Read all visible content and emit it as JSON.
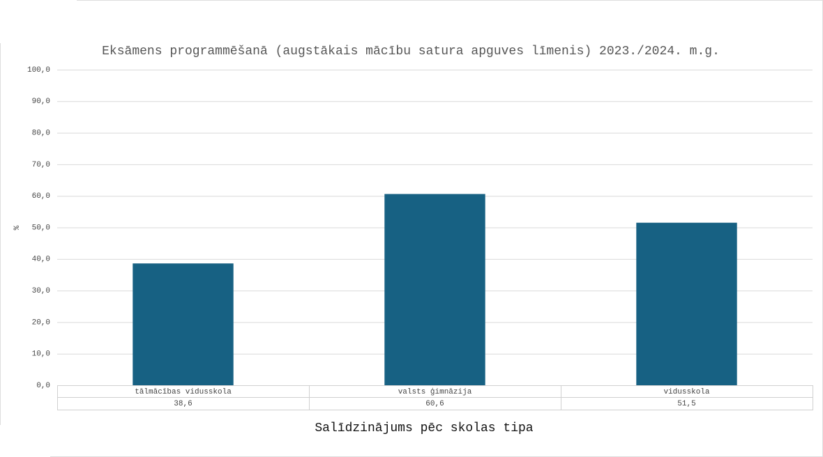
{
  "chart_data": {
    "type": "bar",
    "title": "Eksāmens programmēšanā (augstākais mācību satura apguves līmenis) 2023./2024. m.g.",
    "x_label": "Salīdzinājums pēc skolas tipa",
    "y_label": "%",
    "categories": [
      "tālmācības vidusskola",
      "valsts ģimnāzija",
      "vidusskola"
    ],
    "values": [
      38.6,
      60.6,
      51.5
    ],
    "value_labels": [
      "38,6",
      "60,6",
      "51,5"
    ],
    "color": "#176183",
    "ylim": [
      0,
      100
    ],
    "yticks": [
      {
        "value": 0,
        "label": "0,0"
      },
      {
        "value": 10,
        "label": "10,0"
      },
      {
        "value": 20,
        "label": "20,0"
      },
      {
        "value": 30,
        "label": "30,0"
      },
      {
        "value": 40,
        "label": "40,0"
      },
      {
        "value": 50,
        "label": "50,0"
      },
      {
        "value": 60,
        "label": "60,0"
      },
      {
        "value": 70,
        "label": "70,0"
      },
      {
        "value": 80,
        "label": "80,0"
      },
      {
        "value": 90,
        "label": "90,0"
      },
      {
        "value": 100,
        "label": "100,0"
      }
    ],
    "grid": true
  }
}
